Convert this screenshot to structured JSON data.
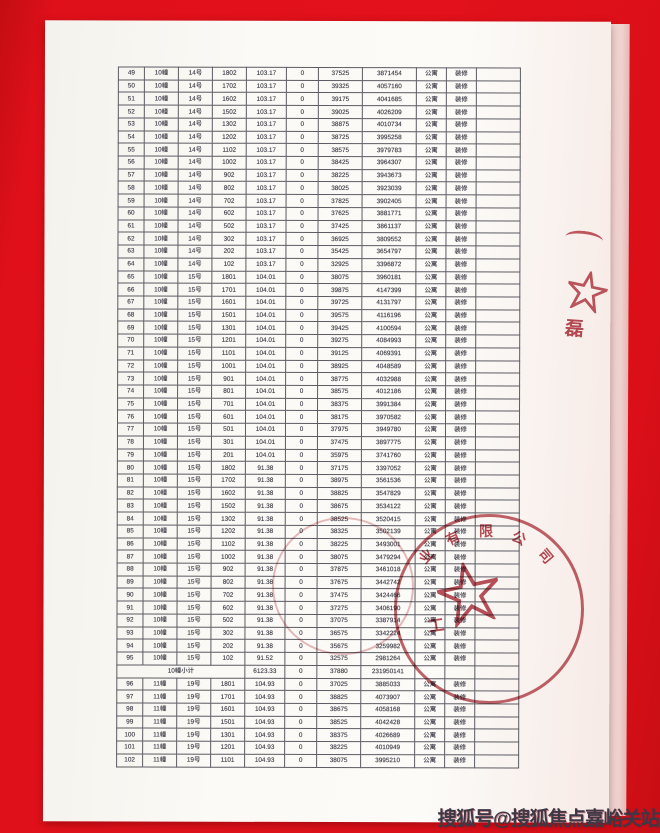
{
  "page": {
    "watermark": "搜狐号@搜狐焦点嘉峪关站"
  },
  "colors": {
    "background_red": "#e2111b",
    "paper_white": "#fbfaf6",
    "stamp_red": "#a82832",
    "table_line": "#5b5b63",
    "text_ink": "#3e3e49"
  },
  "stamps": {
    "company_ring_text": [
      "业",
      "有",
      "限",
      "公",
      "司"
    ],
    "company_inner_char": "工",
    "edge_char": "磊"
  },
  "table": {
    "rows": [
      [
        "49",
        "10幢",
        "14号",
        "1802",
        "103.17",
        "0",
        "37525",
        "3871454",
        "公寓",
        "装修"
      ],
      [
        "50",
        "10幢",
        "14号",
        "1702",
        "103.17",
        "0",
        "39325",
        "4057160",
        "公寓",
        "装修"
      ],
      [
        "51",
        "10幢",
        "14号",
        "1602",
        "103.17",
        "0",
        "39175",
        "4041685",
        "公寓",
        "装修"
      ],
      [
        "52",
        "10幢",
        "14号",
        "1502",
        "103.17",
        "0",
        "39025",
        "4026209",
        "公寓",
        "装修"
      ],
      [
        "53",
        "10幢",
        "14号",
        "1302",
        "103.17",
        "0",
        "38875",
        "4010734",
        "公寓",
        "装修"
      ],
      [
        "54",
        "10幢",
        "14号",
        "1202",
        "103.17",
        "0",
        "38725",
        "3995258",
        "公寓",
        "装修"
      ],
      [
        "55",
        "10幢",
        "14号",
        "1102",
        "103.17",
        "0",
        "38575",
        "3979783",
        "公寓",
        "装修"
      ],
      [
        "56",
        "10幢",
        "14号",
        "1002",
        "103.17",
        "0",
        "38425",
        "3964307",
        "公寓",
        "装修"
      ],
      [
        "57",
        "10幢",
        "14号",
        "902",
        "103.17",
        "0",
        "38225",
        "3943673",
        "公寓",
        "装修"
      ],
      [
        "58",
        "10幢",
        "14号",
        "802",
        "103.17",
        "0",
        "38025",
        "3923039",
        "公寓",
        "装修"
      ],
      [
        "59",
        "10幢",
        "14号",
        "702",
        "103.17",
        "0",
        "37825",
        "3902405",
        "公寓",
        "装修"
      ],
      [
        "60",
        "10幢",
        "14号",
        "602",
        "103.17",
        "0",
        "37625",
        "3881771",
        "公寓",
        "装修"
      ],
      [
        "61",
        "10幢",
        "14号",
        "502",
        "103.17",
        "0",
        "37425",
        "3861137",
        "公寓",
        "装修"
      ],
      [
        "62",
        "10幢",
        "14号",
        "302",
        "103.17",
        "0",
        "36925",
        "3809552",
        "公寓",
        "装修"
      ],
      [
        "63",
        "10幢",
        "14号",
        "202",
        "103.17",
        "0",
        "35425",
        "3654797",
        "公寓",
        "装修"
      ],
      [
        "64",
        "10幢",
        "14号",
        "102",
        "103.17",
        "0",
        "32925",
        "3396872",
        "公寓",
        "装修"
      ],
      [
        "65",
        "10幢",
        "15号",
        "1801",
        "104.01",
        "0",
        "38075",
        "3960181",
        "公寓",
        "装修"
      ],
      [
        "66",
        "10幢",
        "15号",
        "1701",
        "104.01",
        "0",
        "39875",
        "4147399",
        "公寓",
        "装修"
      ],
      [
        "67",
        "10幢",
        "15号",
        "1601",
        "104.01",
        "0",
        "39725",
        "4131797",
        "公寓",
        "装修"
      ],
      [
        "68",
        "10幢",
        "15号",
        "1501",
        "104.01",
        "0",
        "39575",
        "4116196",
        "公寓",
        "装修"
      ],
      [
        "69",
        "10幢",
        "15号",
        "1301",
        "104.01",
        "0",
        "39425",
        "4100594",
        "公寓",
        "装修"
      ],
      [
        "70",
        "10幢",
        "15号",
        "1201",
        "104.01",
        "0",
        "39275",
        "4084993",
        "公寓",
        "装修"
      ],
      [
        "71",
        "10幢",
        "15号",
        "1101",
        "104.01",
        "0",
        "39125",
        "4069391",
        "公寓",
        "装修"
      ],
      [
        "72",
        "10幢",
        "15号",
        "1001",
        "104.01",
        "0",
        "38925",
        "4048589",
        "公寓",
        "装修"
      ],
      [
        "73",
        "10幢",
        "15号",
        "901",
        "104.01",
        "0",
        "38775",
        "4032988",
        "公寓",
        "装修"
      ],
      [
        "74",
        "10幢",
        "15号",
        "801",
        "104.01",
        "0",
        "38575",
        "4012186",
        "公寓",
        "装修"
      ],
      [
        "75",
        "10幢",
        "15号",
        "701",
        "104.01",
        "0",
        "38375",
        "3991384",
        "公寓",
        "装修"
      ],
      [
        "76",
        "10幢",
        "15号",
        "601",
        "104.01",
        "0",
        "38175",
        "3970582",
        "公寓",
        "装修"
      ],
      [
        "77",
        "10幢",
        "15号",
        "501",
        "104.01",
        "0",
        "37975",
        "3949780",
        "公寓",
        "装修"
      ],
      [
        "78",
        "10幢",
        "15号",
        "301",
        "104.01",
        "0",
        "37475",
        "3897775",
        "公寓",
        "装修"
      ],
      [
        "79",
        "10幢",
        "15号",
        "201",
        "104.01",
        "0",
        "35975",
        "3741760",
        "公寓",
        "装修"
      ],
      [
        "80",
        "10幢",
        "15号",
        "1802",
        "91.38",
        "0",
        "37175",
        "3397052",
        "公寓",
        "装修"
      ],
      [
        "81",
        "10幢",
        "15号",
        "1702",
        "91.38",
        "0",
        "38975",
        "3561536",
        "公寓",
        "装修"
      ],
      [
        "82",
        "10幢",
        "15号",
        "1602",
        "91.38",
        "0",
        "38825",
        "3547829",
        "公寓",
        "装修"
      ],
      [
        "83",
        "10幢",
        "15号",
        "1502",
        "91.38",
        "0",
        "38675",
        "3534122",
        "公寓",
        "装修"
      ],
      [
        "84",
        "10幢",
        "15号",
        "1302",
        "91.38",
        "0",
        "38525",
        "3520415",
        "公寓",
        "装修"
      ],
      [
        "85",
        "10幢",
        "15号",
        "1202",
        "91.38",
        "0",
        "38325",
        "3502139",
        "公寓",
        "装修"
      ],
      [
        "86",
        "10幢",
        "15号",
        "1102",
        "91.38",
        "0",
        "38225",
        "3493001",
        "公寓",
        "装修"
      ],
      [
        "87",
        "10幢",
        "15号",
        "1002",
        "91.38",
        "0",
        "38075",
        "3479294",
        "公寓",
        "装修"
      ],
      [
        "88",
        "10幢",
        "15号",
        "902",
        "91.38",
        "0",
        "37875",
        "3461018",
        "公寓",
        "装修"
      ],
      [
        "89",
        "10幢",
        "15号",
        "802",
        "91.38",
        "0",
        "37675",
        "3442742",
        "公寓",
        "装修"
      ],
      [
        "90",
        "10幢",
        "15号",
        "702",
        "91.38",
        "0",
        "37475",
        "3424466",
        "公寓",
        "装修"
      ],
      [
        "91",
        "10幢",
        "15号",
        "602",
        "91.38",
        "0",
        "37275",
        "3406190",
        "公寓",
        "装修"
      ],
      [
        "92",
        "10幢",
        "15号",
        "502",
        "91.38",
        "0",
        "37075",
        "3387914",
        "公寓",
        "装修"
      ],
      [
        "93",
        "10幢",
        "15号",
        "302",
        "91.38",
        "0",
        "36575",
        "3342224",
        "公寓",
        "装修"
      ],
      [
        "94",
        "10幢",
        "15号",
        "202",
        "91.38",
        "0",
        "35675",
        "3259982",
        "公寓",
        "装修"
      ],
      [
        "95",
        "10幢",
        "15号",
        "102",
        "91.52",
        "0",
        "32575",
        "2981264",
        "公寓",
        "装修"
      ],
      {
        "subtotal": true,
        "label": "10幢小计",
        "area": "6123.33",
        "zero": "0",
        "price": "37880",
        "total": "231950141"
      },
      [
        "96",
        "11幢",
        "19号",
        "1801",
        "104.93",
        "0",
        "37025",
        "3885033",
        "公寓",
        "装修"
      ],
      [
        "97",
        "11幢",
        "19号",
        "1701",
        "104.93",
        "0",
        "38825",
        "4073907",
        "公寓",
        "装修"
      ],
      [
        "98",
        "11幢",
        "19号",
        "1601",
        "104.93",
        "0",
        "38675",
        "4058168",
        "公寓",
        "装修"
      ],
      [
        "99",
        "11幢",
        "19号",
        "1501",
        "104.93",
        "0",
        "38525",
        "4042428",
        "公寓",
        "装修"
      ],
      [
        "100",
        "11幢",
        "19号",
        "1301",
        "104.93",
        "0",
        "38375",
        "4026689",
        "公寓",
        "装修"
      ],
      [
        "101",
        "11幢",
        "19号",
        "1201",
        "104.93",
        "0",
        "38225",
        "4010949",
        "公寓",
        "装修"
      ],
      [
        "102",
        "11幢",
        "19号",
        "1101",
        "104.93",
        "0",
        "38075",
        "3995210",
        "公寓",
        "装修"
      ]
    ]
  }
}
